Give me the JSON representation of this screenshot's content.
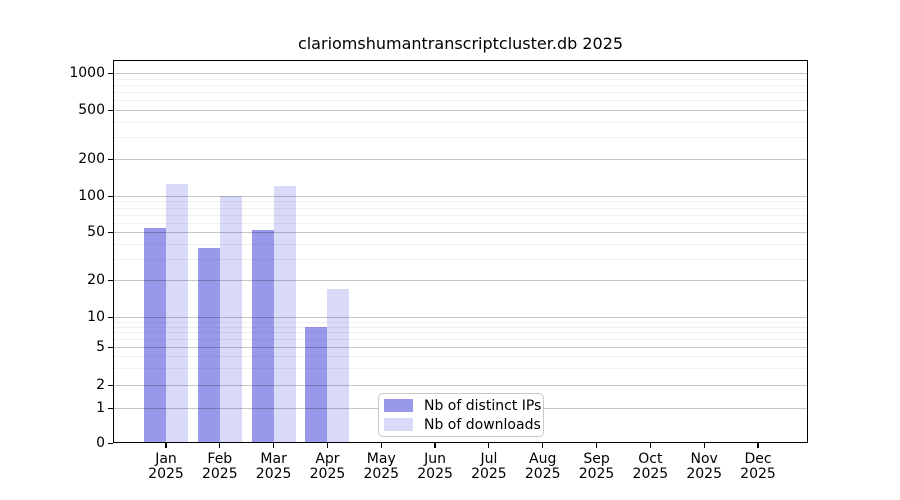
{
  "chart_data": {
    "type": "bar",
    "title": "clariomshumantranscriptcluster.db 2025",
    "categories": [
      "Jan",
      "Feb",
      "Mar",
      "Apr",
      "May",
      "Jun",
      "Jul",
      "Aug",
      "Sep",
      "Oct",
      "Nov",
      "Dec"
    ],
    "year": "2025",
    "series": [
      {
        "name": "Nb of distinct IPs",
        "color": "#9999ec",
        "values": [
          54,
          37,
          52,
          8,
          0,
          0,
          0,
          0,
          0,
          0,
          0,
          0
        ]
      },
      {
        "name": "Nb of downloads",
        "color": "#d9d9f8",
        "values": [
          125,
          100,
          120,
          17,
          0,
          0,
          0,
          0,
          0,
          0,
          0,
          0
        ]
      }
    ],
    "yticks": [
      0,
      1,
      2,
      5,
      10,
      20,
      50,
      100,
      200,
      500,
      1000
    ],
    "xlabel": "",
    "ylabel": "",
    "yscale": "log-with-zero",
    "ylim": [
      0,
      1280
    ],
    "grid": "horizontal major + faint log minors, drawn over bars",
    "legend_position": "inside bottom-center",
    "colors": {
      "axis": "#000000",
      "major_grid": "#c7c7c7",
      "minor_grid": "#efefef",
      "legend_border": "#c9c9c9",
      "background": "#ffffff"
    }
  }
}
